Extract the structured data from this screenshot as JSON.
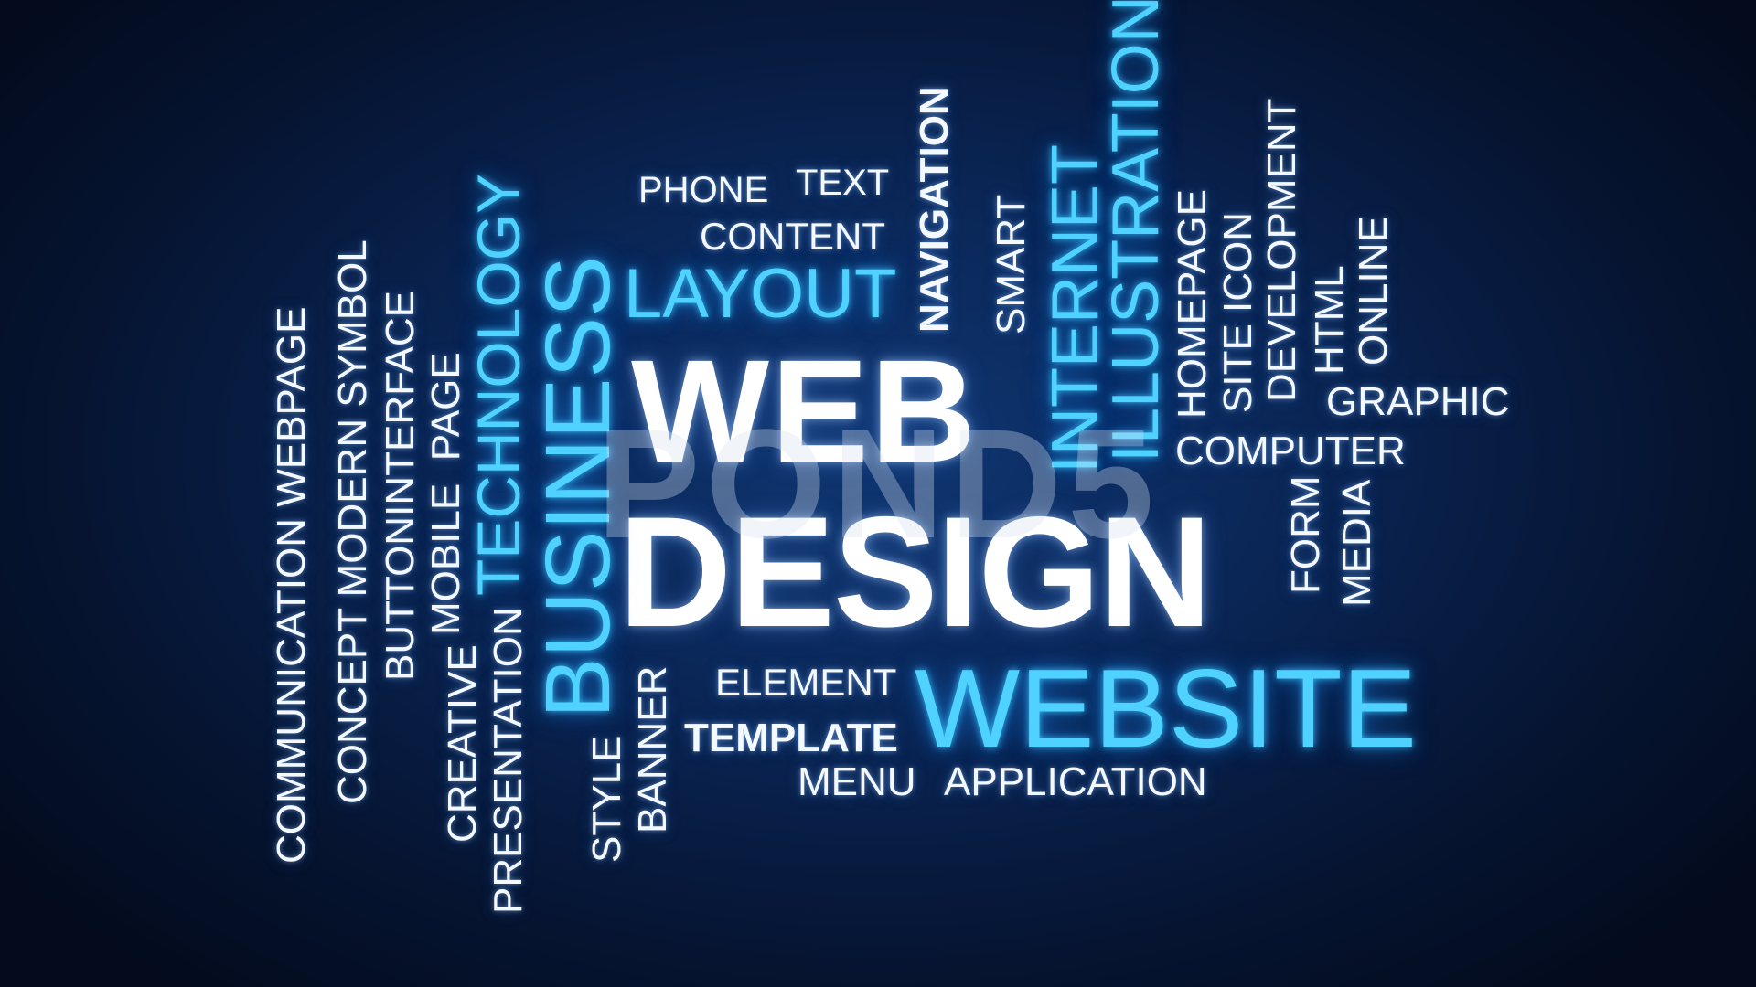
{
  "headline": {
    "line1": "WEB",
    "line2": "DESIGN"
  },
  "watermark": "POND5",
  "words": {
    "phone": "PHONE",
    "text": "TEXT",
    "content": "CONTENT",
    "layout": "LAYOUT",
    "navigation": "NAVIGATION",
    "smart": "SMART",
    "internet": "INTERNET",
    "illustration": "ILLUSTRATION",
    "homepage": "HOMEPAGE",
    "site_icon": "SITE ICON",
    "development": "DEVELOPMENT",
    "html": "HTML",
    "online": "ONLINE",
    "graphic": "GRAPHIC",
    "computer": "COMPUTER",
    "form": "FORM",
    "media": "MEDIA",
    "website": "WEBSITE",
    "element": "ELEMENT",
    "template": "TEMPLATE",
    "menu": "MENU",
    "application": "APPLICATION",
    "banner": "BANNER",
    "style": "STYLE",
    "business": "BUSINESS",
    "technology": "TECHNOLOGY",
    "presentation": "PRESENTATION",
    "creative": "CREATIVE",
    "mobile": "MOBILE",
    "page": "PAGE",
    "button": "BUTTON",
    "interface": "INTERFACE",
    "concept": "CONCEPT",
    "modern": "MODERN",
    "symbol": "SYMBOL",
    "communication": "COMMUNICATION",
    "webpage": "WEBPAGE"
  },
  "colors": {
    "background": "#0a2656",
    "accent": "#4fd2ff",
    "text": "#f4f8ff"
  }
}
